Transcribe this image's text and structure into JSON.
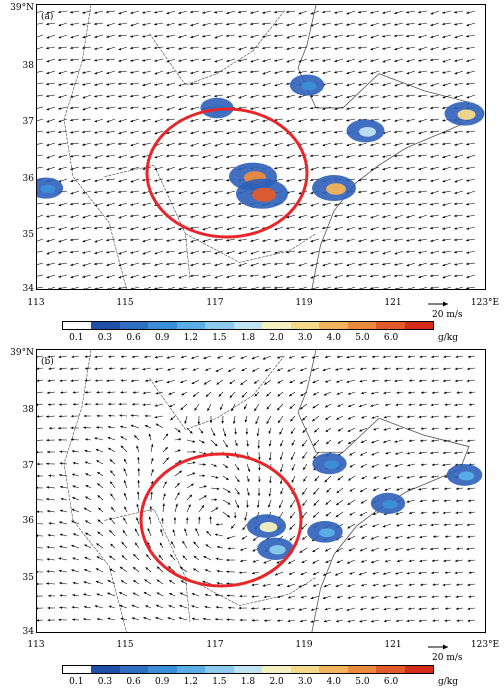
{
  "panels": [
    {
      "label": "(a)",
      "y_ticks": [
        "39°N",
        "38",
        "37",
        "36",
        "35",
        "34"
      ],
      "x_ticks": [
        "113",
        "115",
        "117",
        "119",
        "121",
        "123°E"
      ],
      "ref_vector": "20 m/s",
      "flow": "northeasterly",
      "echo_cells": [
        {
          "lon": 117.8,
          "lat": 36.0,
          "level": 4.0
        },
        {
          "lon": 118.0,
          "lat": 35.7,
          "level": 5.0
        },
        {
          "lon": 119.6,
          "lat": 35.8,
          "level": 3.0
        },
        {
          "lon": 120.3,
          "lat": 36.8,
          "level": 1.5
        },
        {
          "lon": 119.0,
          "lat": 37.6,
          "level": 0.6
        },
        {
          "lon": 117.0,
          "lat": 37.2,
          "level": 0.3
        },
        {
          "lon": 113.2,
          "lat": 35.8,
          "level": 0.6
        },
        {
          "lon": 122.5,
          "lat": 37.1,
          "level": 2.0
        }
      ]
    },
    {
      "label": "(b)",
      "y_ticks": [
        "39°N",
        "38",
        "37",
        "36",
        "35",
        "34"
      ],
      "x_ticks": [
        "113",
        "115",
        "117",
        "119",
        "121",
        "123°E"
      ],
      "ref_vector": "20 m/s",
      "flow": "cyclonic",
      "echo_cells": [
        {
          "lon": 118.1,
          "lat": 35.9,
          "level": 1.8
        },
        {
          "lon": 118.3,
          "lat": 35.5,
          "level": 1.2
        },
        {
          "lon": 119.4,
          "lat": 35.8,
          "level": 0.9
        },
        {
          "lon": 120.8,
          "lat": 36.3,
          "level": 0.6
        },
        {
          "lon": 119.5,
          "lat": 37.0,
          "level": 0.6
        },
        {
          "lon": 122.5,
          "lat": 36.8,
          "level": 0.9
        }
      ]
    }
  ],
  "colorbar": {
    "labels": [
      "0.1",
      "0.3",
      "0.6",
      "0.9",
      "1.2",
      "1.5",
      "1.8",
      "2.0",
      "3.0",
      "4.0",
      "5.0",
      "6.0"
    ],
    "unit": "g/kg",
    "colors": [
      "#1f4fa8",
      "#2e6fc4",
      "#3b8ed8",
      "#5aaee6",
      "#8ccbee",
      "#bfe3f2",
      "#f4f0c0",
      "#f5d98a",
      "#f2b35a",
      "#ec8a3c",
      "#e25a2a",
      "#d42a1a"
    ]
  },
  "circle_color": "#e8262a"
}
